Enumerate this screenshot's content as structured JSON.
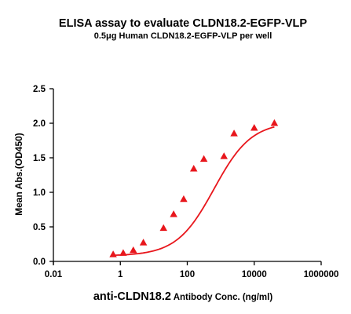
{
  "chart_data": {
    "type": "scatter",
    "title": "ELISA assay to evaluate CLDN18.2-EGFP-VLP",
    "subtitle": "0.5μg Human CLDN18.2-EGFP-VLP per well",
    "xlabel_main": "anti-CLDN18.2",
    "xlabel_sub": " Antibody Conc. (ng/ml)",
    "ylabel": "Mean Abs.(OD450)",
    "x_scale": "log",
    "xlim": [
      0.01,
      1000000
    ],
    "ylim": [
      0,
      2.5
    ],
    "x_ticks": [
      {
        "value": 0.01,
        "label": "0.01"
      },
      {
        "value": 1,
        "label": "1"
      },
      {
        "value": 100,
        "label": "100"
      },
      {
        "value": 10000,
        "label": "10000"
      },
      {
        "value": 1000000,
        "label": "1000000"
      }
    ],
    "y_ticks": [
      {
        "value": 0,
        "label": "0.0"
      },
      {
        "value": 0.5,
        "label": "0.5"
      },
      {
        "value": 1,
        "label": "1.0"
      },
      {
        "value": 1.5,
        "label": "1.5"
      },
      {
        "value": 2,
        "label": "2.0"
      },
      {
        "value": 2.5,
        "label": "2.5"
      }
    ],
    "series": [
      {
        "color": "#e8161c",
        "marker": "triangle",
        "x": [
          0.61,
          1.22,
          2.44,
          4.88,
          19.5,
          39.1,
          78.1,
          156,
          313,
          1250,
          2500,
          10000,
          40000
        ],
        "y": [
          0.1,
          0.12,
          0.16,
          0.27,
          0.48,
          0.68,
          0.9,
          1.34,
          1.48,
          1.52,
          1.85,
          1.93,
          2.0
        ],
        "fit": {
          "bottom": 0.08,
          "top": 2.02,
          "log_ec50": 2.8,
          "hill": 0.78
        }
      }
    ],
    "grid": false,
    "legend": "none"
  }
}
